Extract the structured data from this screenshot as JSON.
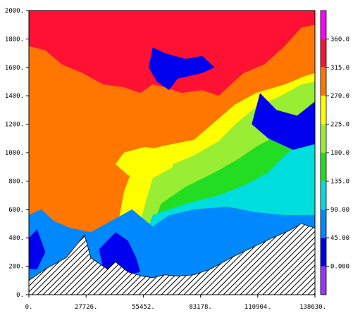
{
  "chart_data": {
    "type": "heatmap",
    "title": "",
    "xlabel": "",
    "ylabel": "",
    "xlim": [
      0,
      138630
    ],
    "ylim": [
      0,
      2000
    ],
    "x_ticks": [
      {
        "value": 0,
        "label": "0."
      },
      {
        "value": 27726,
        "label": "27726."
      },
      {
        "value": 55452,
        "label": "55452."
      },
      {
        "value": 83178,
        "label": "83178."
      },
      {
        "value": 110904,
        "label": "110904."
      },
      {
        "value": 138630,
        "label": "138630."
      }
    ],
    "y_ticks": [
      {
        "value": 0,
        "label": "0."
      },
      {
        "value": 200,
        "label": "200."
      },
      {
        "value": 400,
        "label": "400."
      },
      {
        "value": 600,
        "label": "600."
      },
      {
        "value": 800,
        "label": "800."
      },
      {
        "value": 1000,
        "label": "1000."
      },
      {
        "value": 1200,
        "label": "1200."
      },
      {
        "value": 1400,
        "label": "1400."
      },
      {
        "value": 1600,
        "label": "1600."
      },
      {
        "value": 1800,
        "label": "1800."
      },
      {
        "value": 2000,
        "label": "2000."
      }
    ],
    "colorbar": {
      "levels": [
        {
          "label": "0.000",
          "color": "#9933ff"
        },
        {
          "label": "45.00",
          "color": "#0000ee"
        },
        {
          "label": "90.00",
          "color": "#0088ff"
        },
        {
          "label": "135.0",
          "color": "#00dddd"
        },
        {
          "label": "180.0",
          "color": "#22dd22"
        },
        {
          "label": "225.0",
          "color": "#99ee33"
        },
        {
          "label": "270.0",
          "color": "#ffff00"
        },
        {
          "label": "315.0",
          "color": "#ff7700"
        },
        {
          "label": "360.0",
          "color": "#ff1133"
        }
      ],
      "top_color": "#ff00ff"
    },
    "terrain": {
      "x": [
        0,
        8000,
        18000,
        27000,
        30000,
        38000,
        42000,
        48000,
        55000,
        60000,
        66000,
        72000,
        80000,
        88000,
        98000,
        108000,
        118000,
        126000,
        132000,
        138630
      ],
      "y": [
        100,
        180,
        260,
        420,
        260,
        180,
        230,
        160,
        130,
        120,
        140,
        130,
        140,
        180,
        260,
        330,
        400,
        450,
        500,
        470
      ]
    },
    "fields": [
      {
        "color": "#ff1133",
        "polygon": [
          [
            0,
            2000
          ],
          [
            138630,
            2000
          ],
          [
            138630,
            0
          ],
          [
            0,
            0
          ]
        ]
      },
      {
        "color": "#ff7700",
        "polygon": [
          [
            0,
            1750
          ],
          [
            8000,
            1720
          ],
          [
            16000,
            1620
          ],
          [
            26000,
            1560
          ],
          [
            36000,
            1480
          ],
          [
            46000,
            1460
          ],
          [
            54000,
            1420
          ],
          [
            60000,
            1480
          ],
          [
            66000,
            1460
          ],
          [
            74000,
            1420
          ],
          [
            84000,
            1440
          ],
          [
            92000,
            1400
          ],
          [
            98000,
            1480
          ],
          [
            104000,
            1560
          ],
          [
            114000,
            1620
          ],
          [
            124000,
            1750
          ],
          [
            132000,
            1880
          ],
          [
            138630,
            1900
          ],
          [
            138630,
            400
          ],
          [
            0,
            400
          ]
        ]
      },
      {
        "color": "#ffff00",
        "polygon": [
          [
            52000,
            1000
          ],
          [
            66000,
            1050
          ],
          [
            80000,
            1090
          ],
          [
            92000,
            1240
          ],
          [
            100000,
            1340
          ],
          [
            110000,
            1420
          ],
          [
            124000,
            1480
          ],
          [
            134000,
            1540
          ],
          [
            138630,
            1560
          ],
          [
            138630,
            400
          ],
          [
            40000,
            400
          ],
          [
            44000,
            560
          ],
          [
            46000,
            720
          ],
          [
            50000,
            880
          ]
        ]
      },
      {
        "color": "#99ee33",
        "polygon": [
          [
            60000,
            820
          ],
          [
            70000,
            920
          ],
          [
            80000,
            980
          ],
          [
            92000,
            1080
          ],
          [
            100000,
            1200
          ],
          [
            110000,
            1320
          ],
          [
            122000,
            1400
          ],
          [
            132000,
            1480
          ],
          [
            138630,
            1500
          ],
          [
            138630,
            400
          ],
          [
            52000,
            400
          ],
          [
            56000,
            620
          ]
        ]
      },
      {
        "color": "#22dd22",
        "polygon": [
          [
            64000,
            640
          ],
          [
            76000,
            760
          ],
          [
            90000,
            860
          ],
          [
            102000,
            960
          ],
          [
            110000,
            1040
          ],
          [
            120000,
            1120
          ],
          [
            130000,
            1240
          ],
          [
            138630,
            1300
          ],
          [
            138630,
            400
          ],
          [
            58000,
            400
          ]
        ]
      },
      {
        "color": "#00dddd",
        "polygon": [
          [
            60000,
            560
          ],
          [
            76000,
            640
          ],
          [
            92000,
            700
          ],
          [
            106000,
            780
          ],
          [
            116000,
            860
          ],
          [
            124000,
            980
          ],
          [
            132000,
            1080
          ],
          [
            138630,
            1160
          ],
          [
            138630,
            400
          ],
          [
            56000,
            400
          ]
        ]
      },
      {
        "color": "#0088ff",
        "polygon": [
          [
            0,
            560
          ],
          [
            6000,
            600
          ],
          [
            12000,
            520
          ],
          [
            20000,
            470
          ],
          [
            30000,
            440
          ],
          [
            40000,
            520
          ],
          [
            50000,
            600
          ],
          [
            60000,
            480
          ],
          [
            68000,
            560
          ],
          [
            80000,
            600
          ],
          [
            96000,
            620
          ],
          [
            110000,
            580
          ],
          [
            124000,
            560
          ],
          [
            138630,
            560
          ],
          [
            138630,
            0
          ],
          [
            0,
            0
          ]
        ]
      },
      {
        "color": "#0000ee",
        "polygon": [
          [
            112000,
            1420
          ],
          [
            120000,
            1300
          ],
          [
            130000,
            1260
          ],
          [
            138630,
            1360
          ],
          [
            138630,
            1060
          ],
          [
            128000,
            1020
          ],
          [
            116000,
            1100
          ],
          [
            108000,
            1200
          ]
        ]
      },
      {
        "color": "#0000ee",
        "polygon": [
          [
            60000,
            1740
          ],
          [
            66000,
            1700
          ],
          [
            76000,
            1660
          ],
          [
            84000,
            1680
          ],
          [
            90000,
            1600
          ],
          [
            84000,
            1560
          ],
          [
            72000,
            1520
          ],
          [
            68000,
            1440
          ],
          [
            62000,
            1500
          ],
          [
            58000,
            1600
          ]
        ]
      },
      {
        "color": "#0000ee",
        "polygon": [
          [
            34000,
            320
          ],
          [
            42000,
            440
          ],
          [
            48000,
            380
          ],
          [
            52000,
            260
          ],
          [
            54000,
            160
          ],
          [
            44000,
            130
          ],
          [
            36000,
            180
          ]
        ]
      },
      {
        "color": "#0000ee",
        "polygon": [
          [
            0,
            400
          ],
          [
            4000,
            460
          ],
          [
            8000,
            300
          ],
          [
            4000,
            180
          ],
          [
            0,
            180
          ]
        ]
      },
      {
        "color": "#ffff00",
        "polygon": [
          [
            46000,
            1000
          ],
          [
            56000,
            1040
          ],
          [
            66000,
            1020
          ],
          [
            70000,
            900
          ],
          [
            60000,
            820
          ],
          [
            48000,
            840
          ],
          [
            42000,
            920
          ]
        ]
      }
    ]
  }
}
